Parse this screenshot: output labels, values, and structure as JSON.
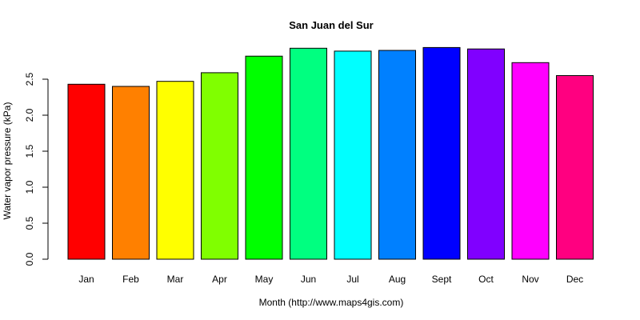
{
  "chart_data": {
    "type": "bar",
    "title": "San Juan del Sur",
    "xlabel": "Month (http://www.maps4gis.com)",
    "ylabel": "Water vapor pressure (kPa)",
    "categories": [
      "Jan",
      "Feb",
      "Mar",
      "Apr",
      "May",
      "Jun",
      "Jul",
      "Aug",
      "Sept",
      "Oct",
      "Nov",
      "Dec"
    ],
    "values": [
      2.43,
      2.4,
      2.47,
      2.59,
      2.82,
      2.93,
      2.89,
      2.9,
      2.94,
      2.92,
      2.73,
      2.55
    ],
    "colors": [
      "#FF0000",
      "#FF8000",
      "#FFFF00",
      "#80FF00",
      "#00FF00",
      "#00FF80",
      "#00FFFF",
      "#0080FF",
      "#0000FF",
      "#8000FF",
      "#FF00FF",
      "#FF0080"
    ],
    "yticks": [
      "0.0",
      "0.5",
      "1.0",
      "1.5",
      "2.0",
      "2.5"
    ],
    "ylim": [
      0,
      2.95
    ],
    "grid": false,
    "legend": "none"
  }
}
